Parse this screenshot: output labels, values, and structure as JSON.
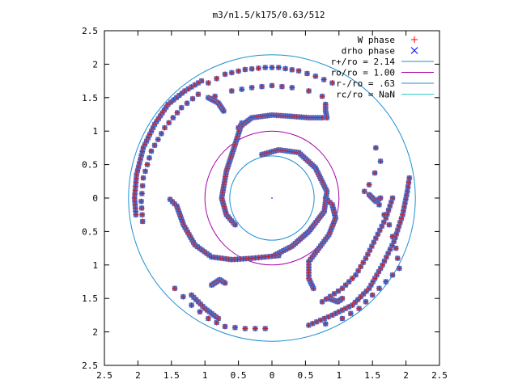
{
  "chart_data": {
    "type": "scatter",
    "title": "m3/n1.5/k175/0.63/512",
    "xlabel": "",
    "ylabel": "",
    "xlim": [
      -2.5,
      2.5
    ],
    "ylim": [
      -2.5,
      2.5
    ],
    "x_ticks": [
      -2.5,
      -2,
      -1.5,
      -1,
      -0.5,
      0,
      0.5,
      1,
      1.5,
      2,
      2.5
    ],
    "y_ticks": [
      -2.5,
      -2,
      -1.5,
      -1,
      -0.5,
      0,
      0.5,
      1,
      1.5,
      2,
      2.5
    ],
    "x_tick_labels": [
      "2.5",
      "2",
      "1.5",
      "1",
      "0.5",
      "0",
      "0.5",
      "1",
      "1.5",
      "2",
      "2.5"
    ],
    "y_tick_labels": [
      "2.5",
      "2",
      "1.5",
      "1",
      "0.5",
      "0",
      "0.5",
      "1",
      "1.5",
      "2",
      "2.5"
    ],
    "grid": false,
    "legend_position": "top-right",
    "legend": [
      {
        "label": "W phase",
        "kind": "point",
        "marker": "plus",
        "color": "#ff0000"
      },
      {
        "label": "drho phase",
        "kind": "point",
        "marker": "cross",
        "color": "#0000ff"
      },
      {
        "label": "r+/ro = 2.14",
        "kind": "circle",
        "radius": 2.14,
        "color": "#1f8fd0"
      },
      {
        "label": "ro/ro = 1.00",
        "kind": "circle",
        "radius": 1.0,
        "color": "#aa00aa"
      },
      {
        "label": "r-/ro = .63",
        "kind": "circle",
        "radius": 0.63,
        "color": "#1f8fd0"
      },
      {
        "label": "rc/ro = NaN",
        "kind": "circle",
        "radius": null,
        "color": "#33cccc"
      }
    ],
    "marker_fill": "#4a6fd0",
    "curves": [
      {
        "name": "outer-left-arm",
        "points": [
          [
            -1.05,
            1.75
          ],
          [
            -1.3,
            1.6
          ],
          [
            -1.55,
            1.4
          ],
          [
            -1.75,
            1.1
          ],
          [
            -1.92,
            0.75
          ],
          [
            -2.02,
            0.35
          ],
          [
            -2.05,
            0
          ],
          [
            -2.03,
            -0.25
          ]
        ],
        "spacing": 0.055
      },
      {
        "name": "outer-left-arm-2",
        "points": [
          [
            -1.1,
            1.55
          ],
          [
            -1.35,
            1.35
          ],
          [
            -1.6,
            1.05
          ],
          [
            -1.8,
            0.7
          ],
          [
            -1.92,
            0.3
          ],
          [
            -1.95,
            -0.05
          ],
          [
            -1.93,
            -0.35
          ]
        ],
        "spacing": 0.11
      },
      {
        "name": "left-middle-arc",
        "points": [
          [
            -1.52,
            -0.02
          ],
          [
            -1.42,
            -0.12
          ],
          [
            -1.32,
            -0.4
          ],
          [
            -1.15,
            -0.7
          ],
          [
            -0.9,
            -0.88
          ],
          [
            -0.6,
            -0.92
          ],
          [
            -0.3,
            -0.9
          ],
          [
            -0.1,
            -0.88
          ],
          [
            0.1,
            -0.86
          ]
        ],
        "spacing": 0.045
      },
      {
        "name": "inner-left-arm",
        "points": [
          [
            -0.45,
            1.12
          ],
          [
            -0.55,
            0.8
          ],
          [
            -0.68,
            0.4
          ],
          [
            -0.75,
            0
          ],
          [
            -0.68,
            -0.25
          ],
          [
            -0.55,
            -0.4
          ]
        ],
        "spacing": 0.04
      },
      {
        "name": "top-arc",
        "points": [
          [
            -0.5,
            1.05
          ],
          [
            -0.3,
            1.2
          ],
          [
            0,
            1.24
          ],
          [
            0.3,
            1.22
          ],
          [
            0.55,
            1.2
          ],
          [
            0.75,
            1.2
          ]
        ],
        "spacing": 0.035
      },
      {
        "name": "inner-top-arc",
        "points": [
          [
            -0.15,
            0.65
          ],
          [
            0.1,
            0.72
          ],
          [
            0.4,
            0.68
          ],
          [
            0.65,
            0.45
          ],
          [
            0.82,
            0.1
          ],
          [
            0.78,
            -0.2
          ],
          [
            0.55,
            -0.5
          ],
          [
            0.3,
            -0.72
          ],
          [
            0.05,
            -0.85
          ]
        ],
        "spacing": 0.035
      },
      {
        "name": "right-middle-arc",
        "points": [
          [
            0.8,
            0.0
          ],
          [
            0.9,
            -0.1
          ],
          [
            0.95,
            -0.3
          ],
          [
            0.85,
            -0.55
          ],
          [
            0.7,
            -0.75
          ],
          [
            0.55,
            -0.95
          ],
          [
            0.55,
            -1.2
          ],
          [
            0.62,
            -1.35
          ]
        ],
        "spacing": 0.045
      },
      {
        "name": "right-lower-arm",
        "points": [
          [
            0.55,
            -1.9
          ],
          [
            0.9,
            -1.75
          ],
          [
            1.2,
            -1.6
          ],
          [
            1.45,
            -1.35
          ],
          [
            1.65,
            -1.0
          ],
          [
            1.82,
            -0.65
          ],
          [
            1.95,
            -0.25
          ],
          [
            2.02,
            0.1
          ],
          [
            2.05,
            0.3
          ]
        ],
        "spacing": 0.06
      },
      {
        "name": "right-inner-lower",
        "points": [
          [
            0.75,
            -1.55
          ],
          [
            1.05,
            -1.35
          ],
          [
            1.25,
            -1.15
          ],
          [
            1.4,
            -0.9
          ],
          [
            1.55,
            -0.6
          ],
          [
            1.7,
            -0.3
          ],
          [
            1.8,
            0.0
          ]
        ],
        "spacing": 0.07
      },
      {
        "name": "top-outer-dots",
        "points": [
          [
            -0.95,
            1.72
          ],
          [
            -0.7,
            1.85
          ],
          [
            -0.4,
            1.92
          ],
          [
            -0.1,
            1.95
          ],
          [
            0.1,
            1.95
          ],
          [
            0.4,
            1.9
          ],
          [
            0.65,
            1.82
          ],
          [
            0.9,
            1.72
          ]
        ],
        "spacing": 0.12
      },
      {
        "name": "top-inner-dots",
        "points": [
          [
            -0.85,
            1.52
          ],
          [
            -0.6,
            1.6
          ],
          [
            -0.3,
            1.65
          ],
          [
            0,
            1.68
          ],
          [
            0.3,
            1.65
          ],
          [
            0.55,
            1.6
          ],
          [
            0.75,
            1.52
          ]
        ],
        "spacing": 0.2
      },
      {
        "name": "bottom-left-dots",
        "points": [
          [
            -1.45,
            -1.35
          ],
          [
            -1.2,
            -1.6
          ],
          [
            -0.95,
            -1.8
          ],
          [
            -0.7,
            -1.92
          ],
          [
            -0.4,
            -1.95
          ],
          [
            -0.1,
            -1.95
          ]
        ],
        "spacing": 0.15
      },
      {
        "name": "bottom-left-arc",
        "points": [
          [
            -1.2,
            -1.45
          ],
          [
            -1.0,
            -1.65
          ],
          [
            -0.8,
            -1.8
          ]
        ],
        "spacing": 0.045
      },
      {
        "name": "blob-1",
        "points": [
          [
            -0.95,
            1.5
          ],
          [
            -0.8,
            1.42
          ],
          [
            -0.72,
            1.3
          ]
        ],
        "spacing": 0.03
      },
      {
        "name": "blob-2",
        "points": [
          [
            -0.9,
            -1.3
          ],
          [
            -0.78,
            -1.22
          ],
          [
            -0.7,
            -1.27
          ]
        ],
        "spacing": 0.03
      },
      {
        "name": "blob-3",
        "points": [
          [
            0.85,
            -1.5
          ],
          [
            0.98,
            -1.55
          ],
          [
            1.05,
            -1.5
          ]
        ],
        "spacing": 0.03
      },
      {
        "name": "blob-4",
        "points": [
          [
            0.82,
            1.2
          ],
          [
            0.8,
            1.3
          ],
          [
            0.8,
            1.4
          ]
        ],
        "spacing": 0.03
      },
      {
        "name": "blob-5",
        "points": [
          [
            1.45,
            0.05
          ],
          [
            1.55,
            -0.05
          ],
          [
            1.62,
            0.0
          ]
        ],
        "spacing": 0.03
      },
      {
        "name": "right-scattered",
        "points": [
          [
            1.6,
            -0.1
          ],
          [
            1.75,
            -0.4
          ],
          [
            1.85,
            -0.75
          ],
          [
            1.9,
            -1.05
          ],
          [
            1.7,
            -1.25
          ],
          [
            1.5,
            -1.45
          ],
          [
            1.3,
            -1.65
          ],
          [
            1.05,
            -1.8
          ],
          [
            0.8,
            -1.88
          ]
        ],
        "spacing": 0.18
      },
      {
        "name": "right-small",
        "points": [
          [
            1.55,
            0.75
          ],
          [
            1.62,
            0.55
          ],
          [
            1.45,
            0.2
          ],
          [
            1.38,
            0.1
          ]
        ],
        "spacing": 0.18
      }
    ]
  }
}
